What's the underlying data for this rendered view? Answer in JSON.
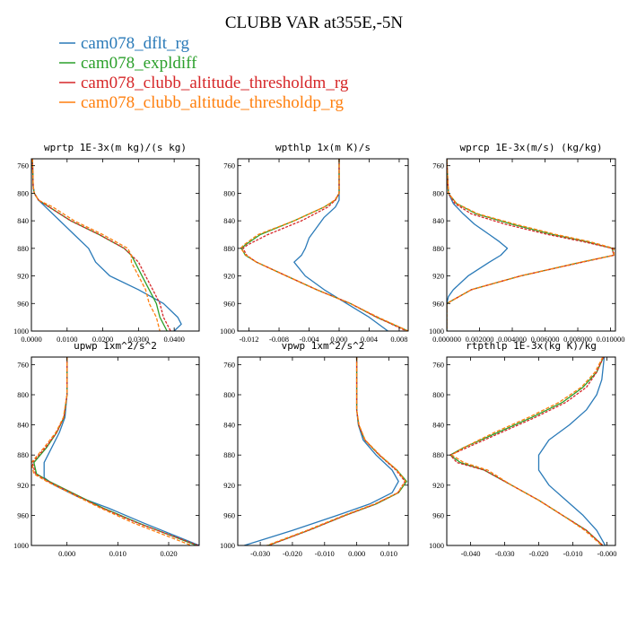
{
  "figure": {
    "title": "CLUBB VAR at355E,-5N",
    "colors": {
      "cam078_dflt_rg": "#2a7ab8",
      "cam078_expldiff": "#2ca02c",
      "cam078_clubb_altitude_thresholdm_rg": "#d62728",
      "cam078_clubb_altitude_thresholdp_rg": "#ff7f0e"
    },
    "legend": [
      "cam078_dflt_rg",
      "cam078_expldiff",
      "cam078_clubb_altitude_thresholdm_rg",
      "cam078_clubb_altitude_thresholdp_rg"
    ]
  },
  "chart_data": [
    {
      "type": "line",
      "title": "wprtp  1E-3x(m kg)/(s kg)",
      "xlim": [
        0.0,
        0.047
      ],
      "ylim": [
        1000,
        750
      ],
      "y_axis": "inverted",
      "xticks": [
        0.0,
        0.01,
        0.02,
        0.03,
        0.04
      ],
      "xtick_labels": [
        "0.0000",
        "0.0100",
        "0.0200",
        "0.0300",
        "0.0400"
      ],
      "yticks": [
        760,
        800,
        840,
        880,
        920,
        960,
        1000
      ],
      "series": [
        {
          "name": "cam078_dflt_rg",
          "y": [
            750,
            790,
            800,
            810,
            820,
            840,
            860,
            880,
            900,
            920,
            940,
            960,
            980,
            990,
            1000
          ],
          "x": [
            0.0003,
            0.0005,
            0.0008,
            0.002,
            0.004,
            0.008,
            0.012,
            0.016,
            0.018,
            0.022,
            0.03,
            0.037,
            0.041,
            0.042,
            0.04
          ]
        },
        {
          "name": "cam078_expldiff",
          "y": [
            750,
            790,
            800,
            810,
            820,
            840,
            860,
            880,
            890,
            900,
            920,
            940,
            960,
            980,
            1000
          ],
          "x": [
            0.0003,
            0.0005,
            0.0008,
            0.002,
            0.005,
            0.011,
            0.019,
            0.026,
            0.028,
            0.029,
            0.031,
            0.033,
            0.035,
            0.036,
            0.038
          ]
        },
        {
          "name": "cam078_clubb_altitude_thresholdm_rg",
          "y": [
            750,
            790,
            800,
            810,
            820,
            840,
            860,
            880,
            890,
            900,
            920,
            940,
            960,
            980,
            1000
          ],
          "x": [
            0.0003,
            0.0005,
            0.0008,
            0.002,
            0.005,
            0.011,
            0.019,
            0.026,
            0.028,
            0.03,
            0.032,
            0.034,
            0.036,
            0.037,
            0.039
          ]
        },
        {
          "name": "cam078_clubb_altitude_thresholdp_rg",
          "y": [
            750,
            790,
            800,
            810,
            820,
            840,
            860,
            880,
            890,
            900,
            920,
            940,
            960,
            980,
            1000
          ],
          "x": [
            0.0003,
            0.0005,
            0.0008,
            0.002,
            0.006,
            0.012,
            0.02,
            0.027,
            0.028,
            0.028,
            0.03,
            0.032,
            0.033,
            0.035,
            0.036
          ]
        }
      ]
    },
    {
      "type": "line",
      "title": "wpthlp  1x(m K)/s",
      "xlim": [
        -0.0135,
        0.0092
      ],
      "ylim": [
        1000,
        750
      ],
      "y_axis": "inverted",
      "xticks": [
        -0.012,
        -0.008,
        -0.004,
        0.0,
        0.004,
        0.008
      ],
      "xtick_labels": [
        "-0.012",
        "-0.008",
        "-0.004",
        "0.000",
        "0.004",
        "0.008"
      ],
      "yticks": [
        760,
        800,
        840,
        880,
        920,
        960,
        1000
      ],
      "series": [
        {
          "name": "cam078_dflt_rg",
          "y": [
            750,
            800,
            810,
            820,
            835,
            850,
            865,
            880,
            890,
            900,
            920,
            940,
            960,
            980,
            1000
          ],
          "x": [
            0.0,
            0.0,
            0.0,
            -0.0005,
            -0.002,
            -0.003,
            -0.004,
            -0.0045,
            -0.005,
            -0.006,
            -0.0045,
            -0.002,
            0.001,
            0.004,
            0.0065
          ]
        },
        {
          "name": "cam078_expldiff",
          "y": [
            750,
            800,
            810,
            820,
            840,
            860,
            875,
            880,
            890,
            900,
            920,
            940,
            960,
            980,
            1000
          ],
          "x": [
            0.0,
            0.0,
            -0.0005,
            -0.002,
            -0.006,
            -0.0105,
            -0.0125,
            -0.013,
            -0.0125,
            -0.011,
            -0.007,
            -0.003,
            0.0015,
            0.005,
            0.0092
          ]
        },
        {
          "name": "cam078_clubb_altitude_thresholdm_rg",
          "y": [
            750,
            800,
            810,
            820,
            840,
            860,
            875,
            880,
            890,
            900,
            920,
            940,
            960,
            980,
            1000
          ],
          "x": [
            0.0,
            0.0,
            -0.0005,
            -0.0015,
            -0.005,
            -0.0095,
            -0.0122,
            -0.0128,
            -0.0123,
            -0.011,
            -0.007,
            -0.003,
            0.0015,
            0.005,
            0.009
          ]
        },
        {
          "name": "cam078_clubb_altitude_thresholdp_rg",
          "y": [
            750,
            800,
            810,
            820,
            840,
            860,
            875,
            880,
            890,
            900,
            920,
            940,
            960,
            980,
            1000
          ],
          "x": [
            0.0,
            0.0,
            -0.0006,
            -0.002,
            -0.006,
            -0.0108,
            -0.0127,
            -0.0131,
            -0.0124,
            -0.011,
            -0.007,
            -0.003,
            0.0015,
            0.0052,
            0.0092
          ]
        }
      ]
    },
    {
      "type": "line",
      "title": "wprcp  1E-3x(m/s) (kg/kg)",
      "xlim": [
        0.0,
        0.0103
      ],
      "ylim": [
        1000,
        750
      ],
      "y_axis": "inverted",
      "xticks": [
        0.0,
        0.002,
        0.004,
        0.006,
        0.008,
        0.01
      ],
      "xtick_labels": [
        "0.000000",
        "0.002000",
        "0.004000",
        "0.006000",
        "0.008000",
        "0.010000"
      ],
      "yticks": [
        760,
        800,
        840,
        880,
        920,
        960,
        1000
      ],
      "series": [
        {
          "name": "cam078_dflt_rg",
          "y": [
            750,
            800,
            815,
            830,
            845,
            860,
            870,
            880,
            890,
            900,
            920,
            940,
            950,
            960,
            1000
          ],
          "x": [
            0.0,
            0.0001,
            0.0004,
            0.001,
            0.0017,
            0.0026,
            0.0032,
            0.0037,
            0.0033,
            0.0026,
            0.0013,
            0.0004,
            0.0001,
            0.0,
            0.0
          ]
        },
        {
          "name": "cam078_expldiff",
          "y": [
            750,
            800,
            815,
            830,
            845,
            860,
            870,
            880,
            890,
            900,
            920,
            940,
            960,
            1000
          ],
          "x": [
            0.0,
            0.0001,
            0.0006,
            0.0018,
            0.004,
            0.0065,
            0.0085,
            0.0101,
            0.0102,
            0.0082,
            0.0045,
            0.0015,
            0.0,
            0.0
          ]
        },
        {
          "name": "cam078_clubb_altitude_thresholdm_rg",
          "y": [
            750,
            800,
            815,
            830,
            845,
            860,
            870,
            880,
            890,
            900,
            920,
            940,
            960,
            1000
          ],
          "x": [
            0.0,
            0.0001,
            0.0005,
            0.0015,
            0.0036,
            0.0062,
            0.0083,
            0.0101,
            0.0102,
            0.0083,
            0.0045,
            0.0015,
            0.0,
            0.0
          ]
        },
        {
          "name": "cam078_clubb_altitude_thresholdp_rg",
          "y": [
            750,
            800,
            815,
            830,
            845,
            860,
            870,
            880,
            890,
            900,
            920,
            940,
            960,
            1000
          ],
          "x": [
            0.0,
            0.0001,
            0.0006,
            0.0019,
            0.0042,
            0.0067,
            0.0087,
            0.0102,
            0.0102,
            0.0082,
            0.0045,
            0.0015,
            0.0,
            0.0
          ]
        }
      ]
    },
    {
      "type": "line",
      "title": "upwp  1xm^2/s^2",
      "xlim": [
        -0.007,
        0.026
      ],
      "ylim": [
        1000,
        750
      ],
      "y_axis": "inverted",
      "xticks": [
        0.0,
        0.01,
        0.02
      ],
      "xtick_labels": [
        "0.000",
        "0.010",
        "0.020"
      ],
      "yticks": [
        760,
        800,
        840,
        880,
        920,
        960,
        1000
      ],
      "series": [
        {
          "name": "cam078_dflt_rg",
          "y": [
            750,
            800,
            830,
            850,
            870,
            890,
            910,
            920,
            935,
            950,
            970,
            1000
          ],
          "x": [
            0.0,
            0.0,
            -0.0004,
            -0.0015,
            -0.003,
            -0.0045,
            -0.0045,
            -0.0025,
            0.002,
            0.008,
            0.015,
            0.026
          ]
        },
        {
          "name": "cam078_expldiff",
          "y": [
            750,
            800,
            830,
            850,
            870,
            890,
            905,
            915,
            930,
            950,
            970,
            1000
          ],
          "x": [
            0.0,
            0.0,
            -0.0006,
            -0.002,
            -0.004,
            -0.0065,
            -0.006,
            -0.0035,
            0.001,
            0.007,
            0.014,
            0.0255
          ]
        },
        {
          "name": "cam078_clubb_altitude_thresholdm_rg",
          "y": [
            750,
            800,
            830,
            850,
            870,
            890,
            905,
            915,
            930,
            950,
            970,
            1000
          ],
          "x": [
            0.0,
            0.0,
            -0.0006,
            -0.002,
            -0.0042,
            -0.0068,
            -0.0062,
            -0.0037,
            0.0008,
            0.0068,
            0.0138,
            0.0258
          ]
        },
        {
          "name": "cam078_clubb_altitude_thresholdp_rg",
          "y": [
            750,
            800,
            830,
            850,
            870,
            890,
            905,
            915,
            930,
            950,
            970,
            1000
          ],
          "x": [
            0.0,
            0.0,
            -0.0007,
            -0.0022,
            -0.0045,
            -0.007,
            -0.0065,
            -0.004,
            0.0005,
            0.0065,
            0.013,
            0.0245
          ]
        }
      ]
    },
    {
      "type": "line",
      "title": "vpwp  1xm^2/s^2",
      "xlim": [
        -0.037,
        0.016
      ],
      "ylim": [
        1000,
        750
      ],
      "y_axis": "inverted",
      "xticks": [
        -0.03,
        -0.02,
        -0.01,
        0.0,
        0.01
      ],
      "xtick_labels": [
        "-0.030",
        "-0.020",
        "-0.010",
        "0.000",
        "0.010"
      ],
      "yticks": [
        760,
        800,
        840,
        880,
        920,
        960,
        1000
      ],
      "series": [
        {
          "name": "cam078_dflt_rg",
          "y": [
            750,
            820,
            840,
            860,
            880,
            900,
            915,
            930,
            945,
            960,
            980,
            1000
          ],
          "x": [
            0.0,
            0.0,
            0.0005,
            0.002,
            0.006,
            0.011,
            0.013,
            0.011,
            0.004,
            -0.006,
            -0.02,
            -0.035
          ]
        },
        {
          "name": "cam078_expldiff",
          "y": [
            750,
            820,
            840,
            860,
            880,
            900,
            915,
            930,
            945,
            960,
            980,
            1000
          ],
          "x": [
            0.0,
            0.0,
            0.0006,
            0.0025,
            0.007,
            0.0125,
            0.0155,
            0.013,
            0.006,
            -0.0035,
            -0.015,
            -0.0275
          ]
        },
        {
          "name": "cam078_clubb_altitude_thresholdm_rg",
          "y": [
            750,
            820,
            840,
            860,
            880,
            900,
            915,
            930,
            945,
            960,
            980,
            1000
          ],
          "x": [
            0.0,
            0.0,
            0.0006,
            0.0025,
            0.007,
            0.0122,
            0.015,
            0.0128,
            0.0058,
            -0.0035,
            -0.015,
            -0.0275
          ]
        },
        {
          "name": "cam078_clubb_altitude_thresholdp_rg",
          "y": [
            750,
            820,
            840,
            860,
            880,
            900,
            915,
            930,
            945,
            960,
            980,
            1000
          ],
          "x": [
            0.0,
            0.0,
            0.0007,
            0.0026,
            0.0072,
            0.0125,
            0.0152,
            0.0128,
            0.0055,
            -0.004,
            -0.0155,
            -0.028
          ]
        }
      ]
    },
    {
      "type": "line",
      "title": "rtpthlp  1E-3x(kg K)/kg",
      "xlim": [
        -0.047,
        0.0025
      ],
      "ylim": [
        1000,
        750
      ],
      "y_axis": "inverted",
      "xticks": [
        -0.04,
        -0.03,
        -0.02,
        -0.01,
        0.0
      ],
      "xtick_labels": [
        "-0.040",
        "-0.030",
        "-0.020",
        "-0.010",
        "-0.000"
      ],
      "yticks": [
        760,
        800,
        840,
        880,
        920,
        960,
        1000
      ],
      "series": [
        {
          "name": "cam078_dflt_rg",
          "y": [
            750,
            780,
            800,
            820,
            840,
            860,
            880,
            900,
            920,
            940,
            960,
            980,
            1000
          ],
          "x": [
            -0.0008,
            -0.0015,
            -0.003,
            -0.006,
            -0.011,
            -0.017,
            -0.02,
            -0.02,
            -0.017,
            -0.012,
            -0.007,
            -0.003,
            -0.0005
          ]
        },
        {
          "name": "cam078_expldiff",
          "y": [
            750,
            770,
            790,
            810,
            830,
            850,
            870,
            880,
            890,
            900,
            920,
            940,
            960,
            980,
            1000
          ],
          "x": [
            -0.001,
            -0.003,
            -0.007,
            -0.013,
            -0.022,
            -0.032,
            -0.042,
            -0.046,
            -0.043,
            -0.036,
            -0.028,
            -0.02,
            -0.013,
            -0.006,
            -0.0012
          ]
        },
        {
          "name": "cam078_clubb_altitude_thresholdm_rg",
          "y": [
            750,
            770,
            790,
            810,
            830,
            850,
            870,
            880,
            890,
            900,
            920,
            940,
            960,
            980,
            1000
          ],
          "x": [
            -0.001,
            -0.003,
            -0.006,
            -0.012,
            -0.021,
            -0.031,
            -0.041,
            -0.046,
            -0.044,
            -0.036,
            -0.028,
            -0.02,
            -0.013,
            -0.006,
            -0.0012
          ]
        },
        {
          "name": "cam078_clubb_altitude_thresholdp_rg",
          "y": [
            750,
            770,
            790,
            810,
            830,
            850,
            870,
            880,
            890,
            900,
            920,
            940,
            960,
            980,
            1000
          ],
          "x": [
            -0.0012,
            -0.0035,
            -0.0075,
            -0.014,
            -0.023,
            -0.033,
            -0.042,
            -0.0455,
            -0.042,
            -0.035,
            -0.028,
            -0.02,
            -0.013,
            -0.0065,
            -0.0015
          ]
        }
      ]
    }
  ]
}
